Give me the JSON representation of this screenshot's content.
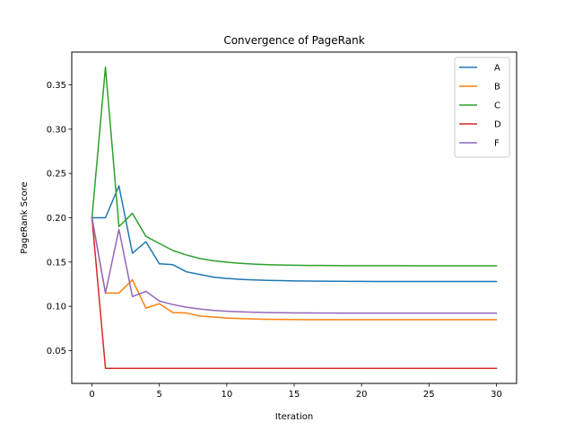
{
  "chart_data": {
    "type": "line",
    "title": "Convergence of PageRank",
    "xlabel": "Iteration",
    "ylabel": "PageRank Score",
    "xlim": [
      -1.5,
      31.5
    ],
    "ylim": [
      0.013,
      0.387
    ],
    "xticks": [
      0,
      5,
      10,
      15,
      20,
      25,
      30
    ],
    "xtick_labels": [
      "0",
      "5",
      "10",
      "15",
      "20",
      "25",
      "30"
    ],
    "yticks": [
      0.05,
      0.1,
      0.15,
      0.2,
      0.25,
      0.3,
      0.35
    ],
    "ytick_labels": [
      "0.05",
      "0.10",
      "0.15",
      "0.20",
      "0.25",
      "0.30",
      "0.35"
    ],
    "grid": false,
    "legend_position": "top-right",
    "x": [
      0,
      1,
      2,
      3,
      4,
      5,
      6,
      7,
      8,
      9,
      10,
      11,
      12,
      13,
      14,
      15,
      16,
      17,
      18,
      19,
      20,
      21,
      22,
      23,
      24,
      25,
      26,
      27,
      28,
      29,
      30
    ],
    "series": [
      {
        "name": "A",
        "color": "#1f77b4",
        "values": [
          0.2,
          0.2,
          0.236,
          0.16,
          0.173,
          0.148,
          0.147,
          0.139,
          0.136,
          0.133,
          0.1315,
          0.1305,
          0.1298,
          0.1293,
          0.129,
          0.1287,
          0.1285,
          0.1284,
          0.1283,
          0.1282,
          0.1282,
          0.1281,
          0.1281,
          0.1281,
          0.128,
          0.128,
          0.128,
          0.128,
          0.128,
          0.128,
          0.128
        ]
      },
      {
        "name": "B",
        "color": "#ff7f0e",
        "values": [
          0.2,
          0.115,
          0.115,
          0.13,
          0.098,
          0.103,
          0.093,
          0.0925,
          0.089,
          0.088,
          0.0868,
          0.0862,
          0.0857,
          0.0854,
          0.0852,
          0.0851,
          0.085,
          0.085,
          0.085,
          0.0849,
          0.0849,
          0.0849,
          0.0849,
          0.0849,
          0.0849,
          0.0849,
          0.0849,
          0.0849,
          0.0849,
          0.0849,
          0.0849
        ]
      },
      {
        "name": "C",
        "color": "#2ca02c",
        "values": [
          0.2,
          0.37,
          0.19,
          0.205,
          0.179,
          0.171,
          0.163,
          0.158,
          0.154,
          0.1515,
          0.1498,
          0.1486,
          0.1477,
          0.1471,
          0.1467,
          0.1464,
          0.1462,
          0.1461,
          0.146,
          0.1459,
          0.1459,
          0.1459,
          0.1459,
          0.1459,
          0.1458,
          0.1458,
          0.1458,
          0.1458,
          0.1458,
          0.1458,
          0.1458
        ]
      },
      {
        "name": "D",
        "color": "#d62728",
        "values": [
          0.2,
          0.03,
          0.03,
          0.03,
          0.03,
          0.03,
          0.03,
          0.03,
          0.03,
          0.03,
          0.03,
          0.03,
          0.03,
          0.03,
          0.03,
          0.03,
          0.03,
          0.03,
          0.03,
          0.03,
          0.03,
          0.03,
          0.03,
          0.03,
          0.03,
          0.03,
          0.03,
          0.03,
          0.03,
          0.03,
          0.03
        ]
      },
      {
        "name": "F",
        "color": "#9467bd",
        "values": [
          0.2,
          0.115,
          0.187,
          0.111,
          0.117,
          0.106,
          0.102,
          0.099,
          0.097,
          0.0955,
          0.0945,
          0.0938,
          0.0933,
          0.093,
          0.0928,
          0.0926,
          0.0925,
          0.0924,
          0.0924,
          0.0923,
          0.0923,
          0.0923,
          0.0923,
          0.0923,
          0.0923,
          0.0923,
          0.0923,
          0.0923,
          0.0923,
          0.0923,
          0.0923
        ]
      }
    ]
  }
}
